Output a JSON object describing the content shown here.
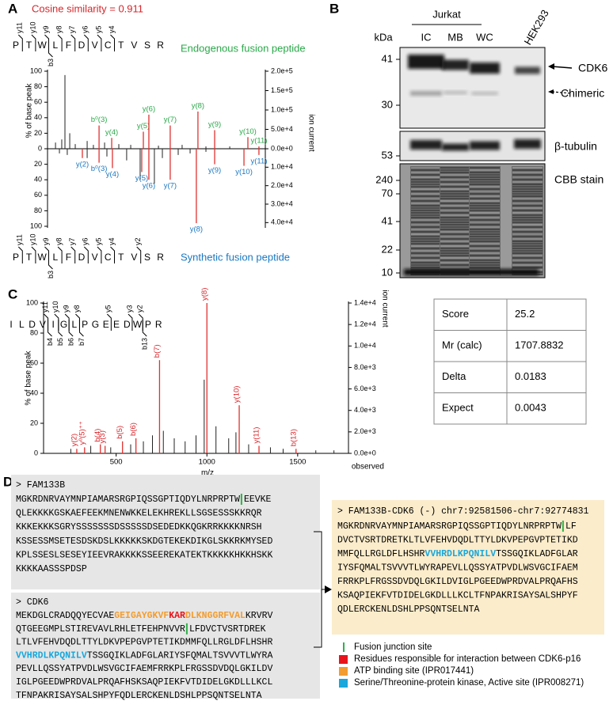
{
  "panel_a": {
    "label": "A",
    "title": "Cosine similarity = 0.911",
    "ylabel": "% of base peak",
    "y2label": "ion current",
    "xlim": [
      200,
      1700
    ],
    "top_name": "Endogenous fusion peptide",
    "bottom_name": "Synthetic fusion peptide",
    "top_peptide": {
      "residues": [
        "P",
        "T",
        "W",
        "L",
        "F",
        "D",
        "V",
        "C",
        "T",
        "V",
        "S",
        "R"
      ],
      "y_ions": [
        "y11",
        "y10",
        "y9",
        "y8",
        "y7",
        "y6",
        "y5",
        "y4",
        null,
        null,
        null
      ],
      "b_ions": [
        null,
        null,
        "b3",
        null,
        null,
        null,
        null,
        null,
        null,
        null,
        null
      ]
    },
    "bottom_peptide": {
      "residues": [
        "P",
        "T",
        "W",
        "L",
        "F",
        "D",
        "V",
        "C",
        "T",
        "V",
        "S",
        "R"
      ],
      "y_ions": [
        "y11",
        "y10",
        "y9",
        "y8",
        "y7",
        "y6",
        "y5",
        "y4",
        null,
        "y2",
        null
      ],
      "b_ions": [
        null,
        null,
        "b3",
        null,
        null,
        null,
        null,
        null,
        null,
        null,
        null
      ]
    },
    "top": {
      "ylim": [
        0,
        100
      ],
      "yticks": [
        0,
        20,
        40,
        60,
        80,
        100
      ],
      "y2lim": [
        0,
        200000
      ],
      "y2ticks": [
        {
          "value": 0,
          "label": "0.0e+0"
        },
        {
          "value": 50000,
          "label": "5.0e+4"
        },
        {
          "value": 100000,
          "label": "1.0e+5"
        },
        {
          "value": 150000,
          "label": "1.5e+5"
        },
        {
          "value": 200000,
          "label": "2.0e+5"
        }
      ],
      "peaks": {
        "x": [
          255,
          298,
          320,
          353,
          391,
          473,
          516,
          593,
          691,
          773,
          964,
          1127,
          1291,
          1455,
          555,
          642,
          860,
          898,
          1045,
          1236,
          1351,
          1580,
          1656
        ],
        "values": [
          8,
          12,
          95,
          20,
          6,
          10,
          5,
          8,
          6,
          5,
          4,
          5,
          3,
          3,
          30,
          14,
          22,
          44,
          30,
          48,
          24,
          15,
          3
        ],
        "labels": [
          null,
          null,
          null,
          null,
          null,
          null,
          null,
          null,
          null,
          null,
          null,
          null,
          null,
          null,
          "b⁰(3)",
          "y(4)",
          "y(5)",
          "y(6)",
          "y(7)",
          "y(8)",
          "y(9)",
          "y(10)",
          "y(11)"
        ]
      }
    },
    "bottom": {
      "ylim": [
        0,
        100
      ],
      "yticks": [
        20,
        40,
        60,
        80,
        100
      ],
      "y2lim": [
        0,
        42000
      ],
      "y2ticks": [
        {
          "value": 10000,
          "label": "1.0e+4"
        },
        {
          "value": 20000,
          "label": "2.0e+4"
        },
        {
          "value": 30000,
          "label": "3.0e+4"
        },
        {
          "value": 40000,
          "label": "4.0e+4"
        }
      ],
      "peaks": {
        "x": [
          282,
          336,
          473,
          609,
          745,
          838,
          936,
          991,
          1100,
          1182,
          1291,
          440,
          555,
          647,
          849,
          898,
          1045,
          1225,
          1351,
          1553,
          1656
        ],
        "values": [
          6,
          8,
          12,
          10,
          15,
          40,
          45,
          12,
          8,
          6,
          4,
          12,
          18,
          25,
          30,
          40,
          40,
          96,
          20,
          22,
          8
        ],
        "labels": [
          null,
          null,
          null,
          null,
          null,
          null,
          null,
          null,
          null,
          null,
          null,
          "y(2)",
          "b⁰(3)",
          "y(4)",
          "y(5)",
          "y(6)",
          "y(7)",
          "y(8)",
          "y(9)",
          "y(10)",
          "y(11)"
        ]
      }
    }
  },
  "panel_b": {
    "label": "B",
    "group": "Jurkat",
    "lanes": [
      "IC",
      "MB",
      "WC",
      "HEK293"
    ],
    "unit": "kDa",
    "blot1_markers": [
      41,
      30
    ],
    "blot2_markers": [
      53
    ],
    "blot3_markers": [
      240,
      70,
      41,
      22,
      10
    ],
    "bands": [
      "CDK6",
      "Chimeric"
    ],
    "loading": "β-tubulin",
    "stain": "CBB stain"
  },
  "panel_c": {
    "label": "C",
    "ylabel": "% of base peak",
    "y2label": "ion current",
    "xlabel": "m/z",
    "xnote": "observed",
    "peptide": {
      "residues": [
        "I",
        "L",
        "D",
        "V",
        "I",
        "G",
        "L",
        "P",
        "G",
        "E",
        "E",
        "D",
        "W",
        "P",
        "R"
      ],
      "y_ions": [
        null,
        null,
        null,
        "y11",
        "y10",
        "y9",
        "y8",
        null,
        null,
        "y5",
        null,
        "y3",
        "y2",
        null
      ],
      "b_ions": [
        null,
        null,
        null,
        "b4",
        "b5",
        "b6",
        "b7",
        null,
        null,
        null,
        null,
        null,
        "b13",
        null
      ]
    },
    "xlim": [
      100,
      1780
    ],
    "xticks": [
      500,
      1000,
      1500
    ],
    "ylim": [
      0,
      100
    ],
    "yticks": [
      0,
      20,
      40,
      60,
      80,
      100
    ],
    "y2lim": [
      0,
      14000
    ],
    "y2ticks": [
      {
        "value": 0,
        "label": "0.0e+0"
      },
      {
        "value": 2000,
        "label": "2.0e+3"
      },
      {
        "value": 4000,
        "label": "4.0e+3"
      },
      {
        "value": 6000,
        "label": "6.0e+3"
      },
      {
        "value": 8000,
        "label": "8.0e+3"
      },
      {
        "value": 10000,
        "label": "1.0e+4"
      },
      {
        "value": 12000,
        "label": "1.2e+4"
      },
      {
        "value": 14000,
        "label": "1.4e+4"
      }
    ],
    "peaks": {
      "x": [
        250,
        360,
        470,
        580,
        650,
        700,
        760,
        820,
        880,
        940,
        985,
        1050,
        1120,
        1160,
        1230,
        1350,
        1420,
        1600,
        1700,
        283,
        326,
        413,
        439,
        535,
        609,
        739,
        1000,
        1178,
        1287,
        1491
      ],
      "values": [
        3,
        5,
        4,
        6,
        8,
        12,
        15,
        10,
        8,
        12,
        49,
        18,
        10,
        14,
        6,
        4,
        3,
        2,
        2,
        3,
        4,
        6,
        5,
        8,
        10,
        62,
        100,
        32,
        5,
        3
      ],
      "labels": [
        null,
        null,
        null,
        null,
        null,
        null,
        null,
        null,
        null,
        null,
        null,
        null,
        null,
        null,
        null,
        null,
        null,
        null,
        null,
        "y(2)",
        "y⁰(5)⁺⁺",
        "b(4)",
        "y(3)",
        "b(5)",
        "b(6)",
        "b(7)",
        "y(8)",
        "y(10)",
        "y(11)",
        "b(13)"
      ]
    },
    "table": {
      "rows": [
        [
          "Score",
          25.2
        ],
        [
          "Mr (calc)",
          1707.8832
        ],
        [
          "Delta",
          0.0183
        ],
        [
          "Expect",
          0.0043
        ]
      ]
    }
  },
  "panel_d": {
    "label": "D",
    "colors": {
      "junction": "#2db24a",
      "interaction": "#e8141b",
      "atp": "#f39c2f",
      "active": "#19a7dc"
    },
    "fam133b": {
      "header": "> FAM133B",
      "lines": [
        [
          "MGKRDNRVAYMNPIAMARSRGPIQSSGPTIQDYLNRPRPTW",
          {
            "kind": "junction"
          },
          "EEVKE"
        ],
        [
          "QLEKKKKGSKAEFEEKMNENWKKELEKHREKLLSGSESSSKKRQR"
        ],
        [
          "KKKEKKKSGRYSSSSSSSDSSSSSDSEDEDKKQGKRRKKKKNRSH"
        ],
        [
          "KSSESSMSETESDSKDSLKKKKKSKDGTEKEKDIKGLSKKRKMYSED"
        ],
        [
          "KPLSSESLSESEYIEEVRAKKKKSSEEREKATEKTKKKKKHKKHSKK"
        ],
        [
          "KKKKAASSSPDSP"
        ]
      ]
    },
    "cdk6": {
      "header": "> CDK6",
      "lines": [
        [
          "MEKDGLCRADQQYECVAE",
          {
            "text": "GEIGAYGKVF",
            "kind": "atp"
          },
          {
            "text": "KAR",
            "kind": "interaction"
          },
          {
            "text": "DLKNGGRFVAL",
            "kind": "atp"
          },
          "KRVRV"
        ],
        [
          "QTGEEGMPLSTIREVAVLRHLETFEHPNVVR",
          {
            "kind": "junction"
          },
          "LFDVCTVSRTDREK"
        ],
        [
          "LTLVFEHVDQDLTTYLDKVPEPGVPTETIKDMMFQLLRGLDFLHSHR"
        ],
        [
          {
            "text": "VVHRDLKPQNILV",
            "kind": "active"
          },
          "TSSGQIKLADFGLARIYSFQMALTSVVVTLWYRA"
        ],
        [
          "PEVLLQSSYATPVDLWSVGCIFAEMFRRKPLFRGSSDVDQLGKILDV"
        ],
        [
          "IGLPGEEDWPRDVALPRQAFHSKSAQPIEKFVTDIDELGKDLLLKCL"
        ],
        [
          "TFNPAKRISAYSALSHPYFQDLERCKENLDSHLPPSQNTSELNTA"
        ]
      ]
    },
    "fusion": {
      "header": "> FAM133B-CDK6 (-) chr7:92581506-chr7:92774831",
      "lines": [
        [
          "MGKRDNRVAYMNPIAMARSRGPIQSSGPTIQDYLNRPRPTW",
          {
            "kind": "junction"
          },
          "LF"
        ],
        [
          "DVCTVSRTDRETKLTLVFEHVDQDLTTYLDKVPEPGVPTETIKD"
        ],
        [
          "MMFQLLRGLDFLHSHR",
          {
            "text": "VVHRDLKPQNILV",
            "kind": "active"
          },
          "TSSGQIKLADFGLAR"
        ],
        [
          "IYSFQMALTSVVVTLWYRAPEVLLQSSYATPVDLWSVGCIFAEM"
        ],
        [
          "FRRKPLFRGSSDVDQLGKILDVIGLPGEEDWPRDVALPRQAFHS"
        ],
        [
          "KSAQPIEKFVTDIDELGKDLLLKCLTFNPAKRISAYSALSHPYF"
        ],
        [
          "QDLERCKENLDSHLPPSQNTSELNTA"
        ]
      ]
    },
    "legend": [
      {
        "label": "Fusion junction site",
        "kind": "junction"
      },
      {
        "label": "Residues responsible for interaction between CDK6-p16",
        "kind": "interaction"
      },
      {
        "label": "ATP binding site (IPR017441)",
        "kind": "atp"
      },
      {
        "label": "Serine/Threonine-protein kinase, Active site (IPR008271)",
        "kind": "active"
      }
    ]
  }
}
